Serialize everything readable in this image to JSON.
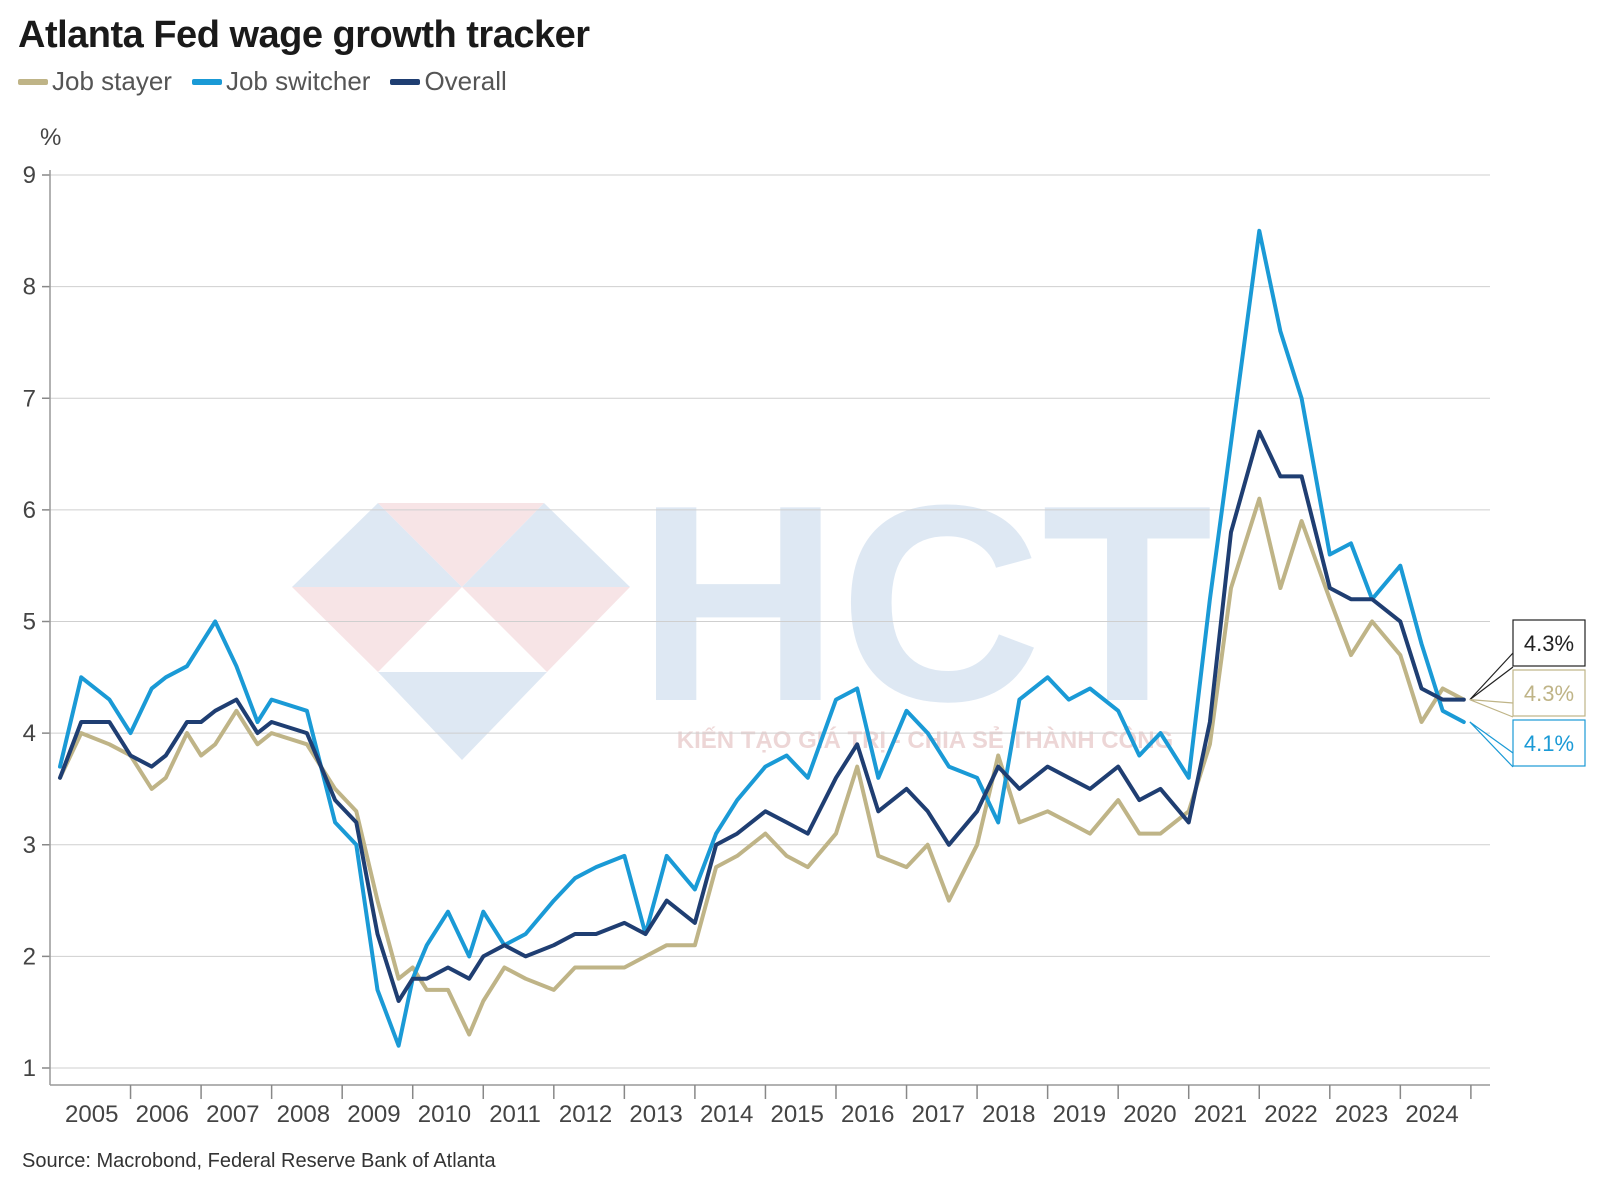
{
  "title": "Atlanta Fed wage growth tracker",
  "source": "Source: Macrobond, Federal Reserve Bank of Atlanta",
  "colors": {
    "job_stayer": "#bfb487",
    "job_switcher": "#1a9ad6",
    "overall": "#1f3e72"
  },
  "watermark": {
    "logo_text": "HCT",
    "slogan": "KIẾN TẠO GIÁ TRỊ - CHIA SẺ THÀNH CÔNG"
  },
  "chart_data": {
    "type": "line",
    "ylabel": "%",
    "ylim": [
      1,
      9
    ],
    "yticks": [
      1,
      2,
      3,
      4,
      5,
      6,
      7,
      8,
      9
    ],
    "xlim": [
      2005.0,
      2025.2
    ],
    "xtick_labels": [
      "2005",
      "2006",
      "2007",
      "2008",
      "2009",
      "2010",
      "2011",
      "2012",
      "2013",
      "2014",
      "2015",
      "2016",
      "2017",
      "2018",
      "2019",
      "2020",
      "2021",
      "2022",
      "2023",
      "2024"
    ],
    "grid": true,
    "legend_position": "top-left",
    "end_labels": [
      {
        "series": "Overall",
        "text": "4.3%"
      },
      {
        "series": "Job stayer",
        "text": "4.3%"
      },
      {
        "series": "Job switcher",
        "text": "4.1%"
      }
    ],
    "series": [
      {
        "name": "Job stayer",
        "color": "#bfb487",
        "points": [
          [
            2005.0,
            3.6
          ],
          [
            2005.3,
            4.0
          ],
          [
            2005.7,
            3.9
          ],
          [
            2006.0,
            3.8
          ],
          [
            2006.3,
            3.5
          ],
          [
            2006.5,
            3.6
          ],
          [
            2006.8,
            4.0
          ],
          [
            2007.0,
            3.8
          ],
          [
            2007.2,
            3.9
          ],
          [
            2007.5,
            4.2
          ],
          [
            2007.8,
            3.9
          ],
          [
            2008.0,
            4.0
          ],
          [
            2008.5,
            3.9
          ],
          [
            2008.9,
            3.5
          ],
          [
            2009.2,
            3.3
          ],
          [
            2009.5,
            2.5
          ],
          [
            2009.8,
            1.8
          ],
          [
            2010.0,
            1.9
          ],
          [
            2010.2,
            1.7
          ],
          [
            2010.5,
            1.7
          ],
          [
            2010.8,
            1.3
          ],
          [
            2011.0,
            1.6
          ],
          [
            2011.3,
            1.9
          ],
          [
            2011.6,
            1.8
          ],
          [
            2012.0,
            1.7
          ],
          [
            2012.3,
            1.9
          ],
          [
            2012.6,
            1.9
          ],
          [
            2013.0,
            1.9
          ],
          [
            2013.3,
            2.0
          ],
          [
            2013.6,
            2.1
          ],
          [
            2014.0,
            2.1
          ],
          [
            2014.3,
            2.8
          ],
          [
            2014.6,
            2.9
          ],
          [
            2015.0,
            3.1
          ],
          [
            2015.3,
            2.9
          ],
          [
            2015.6,
            2.8
          ],
          [
            2016.0,
            3.1
          ],
          [
            2016.3,
            3.7
          ],
          [
            2016.6,
            2.9
          ],
          [
            2017.0,
            2.8
          ],
          [
            2017.3,
            3.0
          ],
          [
            2017.6,
            2.5
          ],
          [
            2018.0,
            3.0
          ],
          [
            2018.3,
            3.8
          ],
          [
            2018.6,
            3.2
          ],
          [
            2019.0,
            3.3
          ],
          [
            2019.3,
            3.2
          ],
          [
            2019.6,
            3.1
          ],
          [
            2020.0,
            3.4
          ],
          [
            2020.3,
            3.1
          ],
          [
            2020.6,
            3.1
          ],
          [
            2021.0,
            3.3
          ],
          [
            2021.3,
            3.9
          ],
          [
            2021.6,
            5.3
          ],
          [
            2022.0,
            6.1
          ],
          [
            2022.3,
            5.3
          ],
          [
            2022.6,
            5.9
          ],
          [
            2023.0,
            5.2
          ],
          [
            2023.3,
            4.7
          ],
          [
            2023.6,
            5.0
          ],
          [
            2024.0,
            4.7
          ],
          [
            2024.3,
            4.1
          ],
          [
            2024.6,
            4.4
          ],
          [
            2024.9,
            4.3
          ]
        ]
      },
      {
        "name": "Job switcher",
        "color": "#1a9ad6",
        "points": [
          [
            2005.0,
            3.7
          ],
          [
            2005.3,
            4.5
          ],
          [
            2005.7,
            4.3
          ],
          [
            2006.0,
            4.0
          ],
          [
            2006.3,
            4.4
          ],
          [
            2006.5,
            4.5
          ],
          [
            2006.8,
            4.6
          ],
          [
            2007.0,
            4.8
          ],
          [
            2007.2,
            5.0
          ],
          [
            2007.5,
            4.6
          ],
          [
            2007.8,
            4.1
          ],
          [
            2008.0,
            4.3
          ],
          [
            2008.5,
            4.2
          ],
          [
            2008.9,
            3.2
          ],
          [
            2009.2,
            3.0
          ],
          [
            2009.5,
            1.7
          ],
          [
            2009.8,
            1.2
          ],
          [
            2010.0,
            1.8
          ],
          [
            2010.2,
            2.1
          ],
          [
            2010.5,
            2.4
          ],
          [
            2010.8,
            2.0
          ],
          [
            2011.0,
            2.4
          ],
          [
            2011.3,
            2.1
          ],
          [
            2011.6,
            2.2
          ],
          [
            2012.0,
            2.5
          ],
          [
            2012.3,
            2.7
          ],
          [
            2012.6,
            2.8
          ],
          [
            2013.0,
            2.9
          ],
          [
            2013.3,
            2.2
          ],
          [
            2013.6,
            2.9
          ],
          [
            2014.0,
            2.6
          ],
          [
            2014.3,
            3.1
          ],
          [
            2014.6,
            3.4
          ],
          [
            2015.0,
            3.7
          ],
          [
            2015.3,
            3.8
          ],
          [
            2015.6,
            3.6
          ],
          [
            2016.0,
            4.3
          ],
          [
            2016.3,
            4.4
          ],
          [
            2016.6,
            3.6
          ],
          [
            2017.0,
            4.2
          ],
          [
            2017.3,
            4.0
          ],
          [
            2017.6,
            3.7
          ],
          [
            2018.0,
            3.6
          ],
          [
            2018.3,
            3.2
          ],
          [
            2018.6,
            4.3
          ],
          [
            2019.0,
            4.5
          ],
          [
            2019.3,
            4.3
          ],
          [
            2019.6,
            4.4
          ],
          [
            2020.0,
            4.2
          ],
          [
            2020.3,
            3.8
          ],
          [
            2020.6,
            4.0
          ],
          [
            2021.0,
            3.6
          ],
          [
            2021.3,
            5.2
          ],
          [
            2021.6,
            6.6
          ],
          [
            2022.0,
            8.5
          ],
          [
            2022.3,
            7.6
          ],
          [
            2022.6,
            7.0
          ],
          [
            2023.0,
            5.6
          ],
          [
            2023.3,
            5.7
          ],
          [
            2023.6,
            5.2
          ],
          [
            2024.0,
            5.5
          ],
          [
            2024.3,
            4.8
          ],
          [
            2024.6,
            4.2
          ],
          [
            2024.9,
            4.1
          ]
        ]
      },
      {
        "name": "Overall",
        "color": "#1f3e72",
        "points": [
          [
            2005.0,
            3.6
          ],
          [
            2005.3,
            4.1
          ],
          [
            2005.7,
            4.1
          ],
          [
            2006.0,
            3.8
          ],
          [
            2006.3,
            3.7
          ],
          [
            2006.5,
            3.8
          ],
          [
            2006.8,
            4.1
          ],
          [
            2007.0,
            4.1
          ],
          [
            2007.2,
            4.2
          ],
          [
            2007.5,
            4.3
          ],
          [
            2007.8,
            4.0
          ],
          [
            2008.0,
            4.1
          ],
          [
            2008.5,
            4.0
          ],
          [
            2008.9,
            3.4
          ],
          [
            2009.2,
            3.2
          ],
          [
            2009.5,
            2.2
          ],
          [
            2009.8,
            1.6
          ],
          [
            2010.0,
            1.8
          ],
          [
            2010.2,
            1.8
          ],
          [
            2010.5,
            1.9
          ],
          [
            2010.8,
            1.8
          ],
          [
            2011.0,
            2.0
          ],
          [
            2011.3,
            2.1
          ],
          [
            2011.6,
            2.0
          ],
          [
            2012.0,
            2.1
          ],
          [
            2012.3,
            2.2
          ],
          [
            2012.6,
            2.2
          ],
          [
            2013.0,
            2.3
          ],
          [
            2013.3,
            2.2
          ],
          [
            2013.6,
            2.5
          ],
          [
            2014.0,
            2.3
          ],
          [
            2014.3,
            3.0
          ],
          [
            2014.6,
            3.1
          ],
          [
            2015.0,
            3.3
          ],
          [
            2015.3,
            3.2
          ],
          [
            2015.6,
            3.1
          ],
          [
            2016.0,
            3.6
          ],
          [
            2016.3,
            3.9
          ],
          [
            2016.6,
            3.3
          ],
          [
            2017.0,
            3.5
          ],
          [
            2017.3,
            3.3
          ],
          [
            2017.6,
            3.0
          ],
          [
            2018.0,
            3.3
          ],
          [
            2018.3,
            3.7
          ],
          [
            2018.6,
            3.5
          ],
          [
            2019.0,
            3.7
          ],
          [
            2019.3,
            3.6
          ],
          [
            2019.6,
            3.5
          ],
          [
            2020.0,
            3.7
          ],
          [
            2020.3,
            3.4
          ],
          [
            2020.6,
            3.5
          ],
          [
            2021.0,
            3.2
          ],
          [
            2021.3,
            4.1
          ],
          [
            2021.6,
            5.8
          ],
          [
            2022.0,
            6.7
          ],
          [
            2022.3,
            6.3
          ],
          [
            2022.6,
            6.3
          ],
          [
            2023.0,
            5.3
          ],
          [
            2023.3,
            5.2
          ],
          [
            2023.6,
            5.2
          ],
          [
            2024.0,
            5.0
          ],
          [
            2024.3,
            4.4
          ],
          [
            2024.6,
            4.3
          ],
          [
            2024.9,
            4.3
          ]
        ]
      }
    ]
  }
}
